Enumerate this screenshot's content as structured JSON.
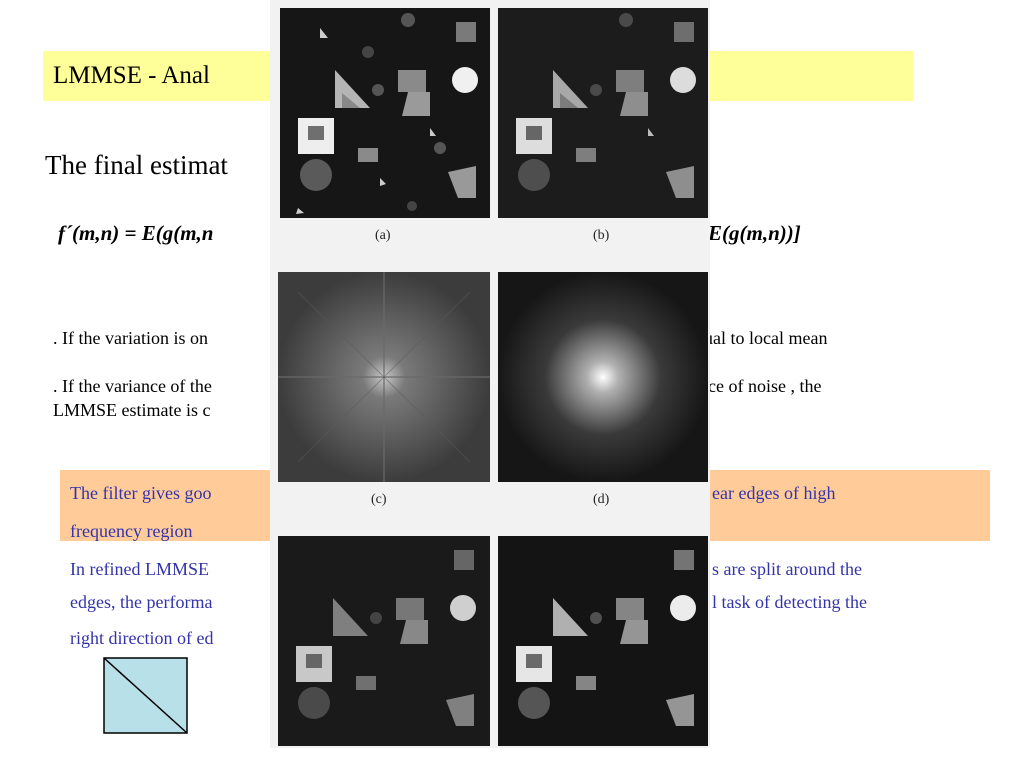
{
  "slide": {
    "title": "LMMSE -  Anal",
    "subtitle": "The final estimat",
    "formula_left": "f´(m,n) = E(g(m,n",
    "formula_right": "E(g(m,n))]",
    "bullet1_left": ". If the variation is on",
    "bullet1_right": "qual to  local mean",
    "bullet2_left": ". If the variance of the",
    "bullet2_right": "ce of noise , the",
    "bullet2_line2": "LMMSE estimate is c",
    "note1_left": "The filter gives goo",
    "note1_right": "ear edges of high",
    "note1_line2": "frequency  region",
    "note2_left": "In refined LMMSE",
    "note2_right": "s are split around the",
    "note3_left": "edges, the performa",
    "note3_right": "l task of detecting the",
    "note4_left": "right direction of ed"
  },
  "figure": {
    "captions": [
      "(a)",
      "(b)",
      "(c)",
      "(d)"
    ]
  },
  "colors": {
    "title_bg": "#ffff99",
    "note_bg": "#ffcc99",
    "note_text": "#3333aa",
    "diagram_fill": "#b8e0e8"
  }
}
